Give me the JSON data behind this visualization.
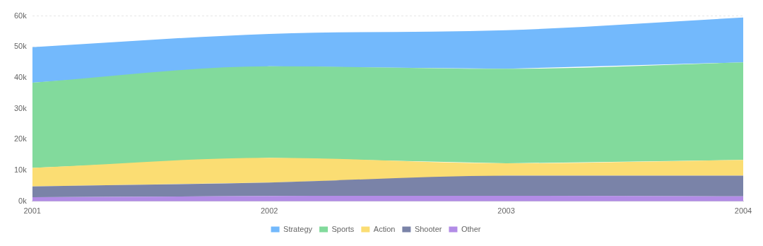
{
  "chart_data": {
    "type": "area",
    "stacked": true,
    "categories": [
      "2001",
      "2002",
      "2003",
      "2004"
    ],
    "series": [
      {
        "name": "Other",
        "color": "#b28ce6",
        "values": [
          1300,
          1700,
          1800,
          1600
        ]
      },
      {
        "name": "Shooter",
        "color": "#7a83a8",
        "values": [
          3500,
          4400,
          6500,
          6700
        ]
      },
      {
        "name": "Action",
        "color": "#fbdd73",
        "values": [
          6000,
          8000,
          4000,
          5100
        ]
      },
      {
        "name": "Sports",
        "color": "#82da9c",
        "values": [
          27600,
          29600,
          30600,
          31600
        ]
      },
      {
        "name": "Strategy",
        "color": "#73b9fc",
        "values": [
          11500,
          10500,
          12500,
          14500
        ]
      }
    ],
    "ylim": [
      0,
      60000
    ],
    "yticks": [
      {
        "value": 0,
        "label": "0k"
      },
      {
        "value": 10000,
        "label": "10k"
      },
      {
        "value": 20000,
        "label": "20k"
      },
      {
        "value": 30000,
        "label": "30k"
      },
      {
        "value": 40000,
        "label": "40k"
      },
      {
        "value": 50000,
        "label": "50k"
      },
      {
        "value": 60000,
        "label": "60k"
      }
    ],
    "grid": "y",
    "legend": "bottom"
  }
}
